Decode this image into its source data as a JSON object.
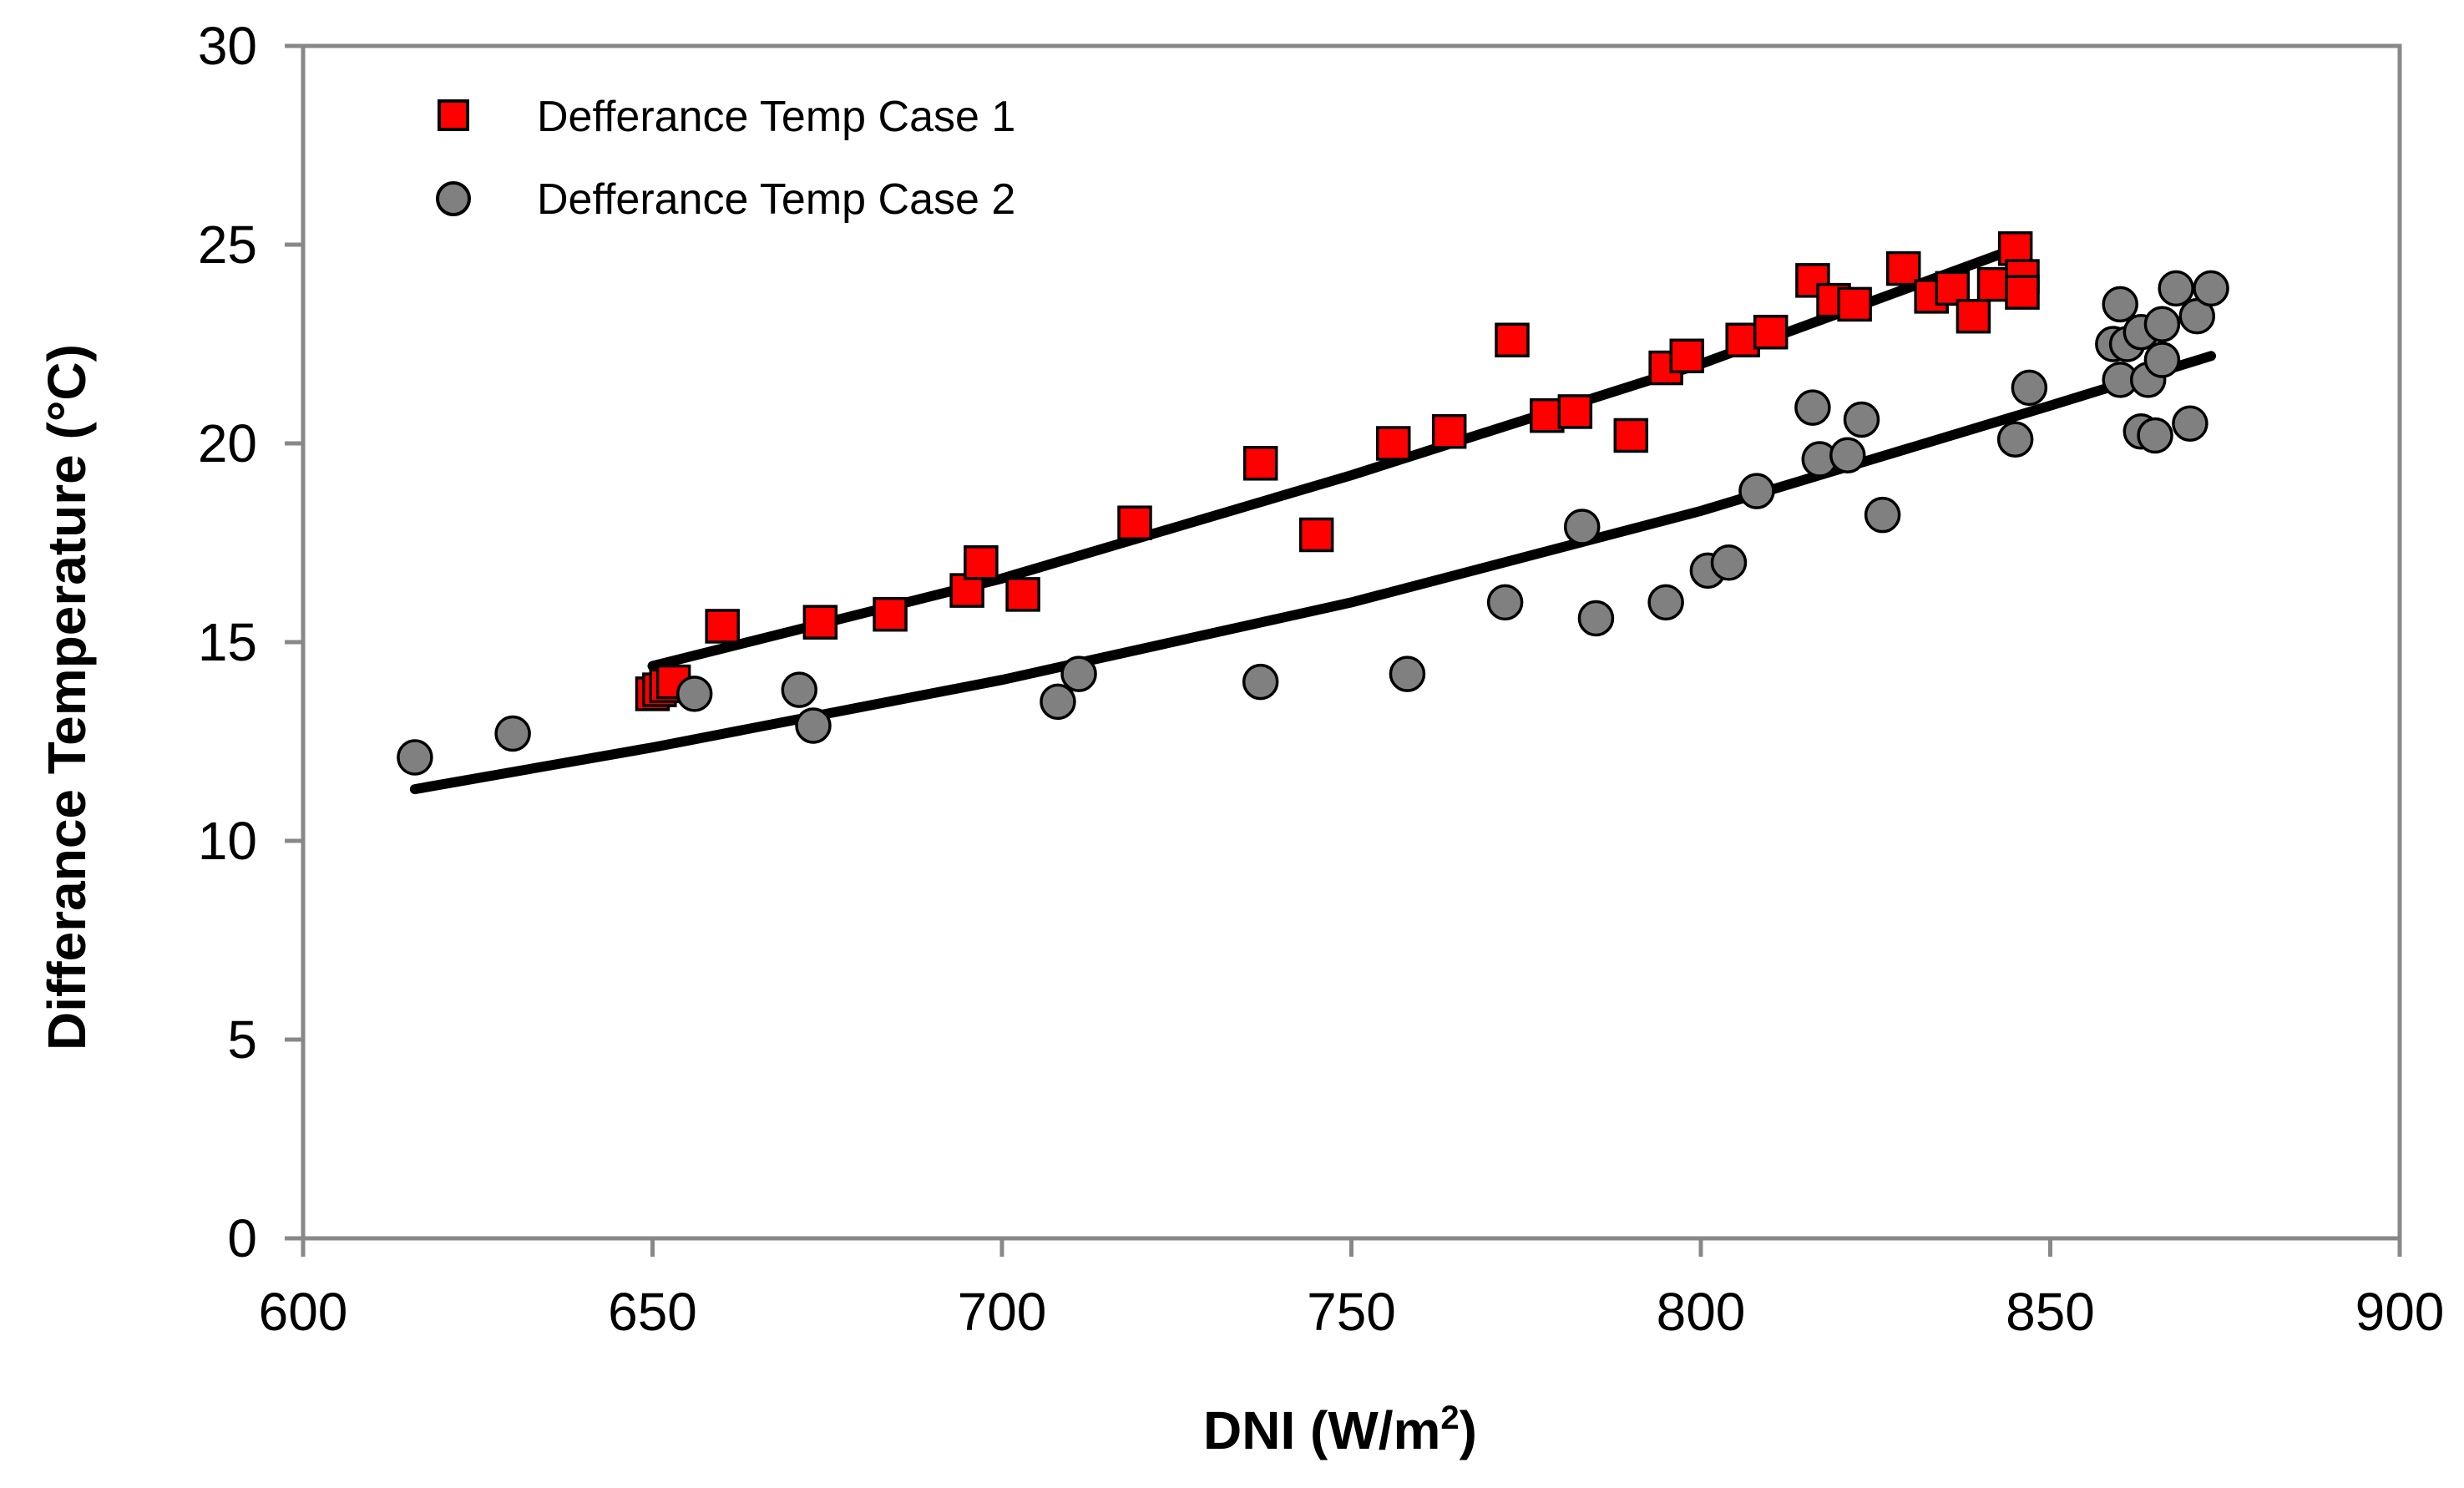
{
  "chart_data": {
    "type": "scatter",
    "xlabel_main": "DNI (W/m",
    "xlabel_sup": "2",
    "xlabel_end": ")",
    "ylabel": "Differance Temperature (°C)",
    "xlim": [
      600,
      900
    ],
    "ylim": [
      0,
      30
    ],
    "xticks": [
      600,
      650,
      700,
      750,
      800,
      850,
      900
    ],
    "yticks": [
      0,
      5,
      10,
      15,
      20,
      25,
      30
    ],
    "xtick_labels": [
      "600",
      "650",
      "700",
      "750",
      "800",
      "850",
      "900"
    ],
    "ytick_labels": [
      "0",
      "5",
      "10",
      "15",
      "20",
      "25",
      "30"
    ],
    "legend_position": "top-left",
    "grid": false,
    "series": [
      {
        "name": "Defferance Temp Case 1",
        "marker": "square",
        "color": "#ff0000",
        "edge_color": "#000000",
        "points": [
          [
            650,
            13.7
          ],
          [
            651,
            13.8
          ],
          [
            652,
            13.9
          ],
          [
            653,
            14.0
          ],
          [
            660,
            15.4
          ],
          [
            674,
            15.5
          ],
          [
            684,
            15.7
          ],
          [
            695,
            16.3
          ],
          [
            697,
            17.0
          ],
          [
            703,
            16.2
          ],
          [
            719,
            18.0
          ],
          [
            737,
            19.5
          ],
          [
            745,
            17.7
          ],
          [
            756,
            20.0
          ],
          [
            764,
            20.3
          ],
          [
            773,
            22.6
          ],
          [
            778,
            20.7
          ],
          [
            782,
            20.8
          ],
          [
            790,
            20.2
          ],
          [
            795,
            21.9
          ],
          [
            798,
            22.2
          ],
          [
            806,
            22.6
          ],
          [
            810,
            22.8
          ],
          [
            816,
            24.1
          ],
          [
            819,
            23.6
          ],
          [
            822,
            23.5
          ],
          [
            829,
            24.4
          ],
          [
            833,
            23.7
          ],
          [
            836,
            23.9
          ],
          [
            839,
            23.2
          ],
          [
            842,
            24.0
          ],
          [
            845,
            24.9
          ],
          [
            846,
            24.2
          ],
          [
            846,
            23.8
          ]
        ],
        "trend": {
          "x": [
            650,
            700,
            750,
            800,
            845
          ],
          "y": [
            14.4,
            16.6,
            19.2,
            22.0,
            24.9
          ]
        }
      },
      {
        "name": "Defferance Temp Case 2",
        "marker": "circle",
        "color": "#808080",
        "edge_color": "#000000",
        "points": [
          [
            616,
            12.1
          ],
          [
            630,
            12.7
          ],
          [
            656,
            13.7
          ],
          [
            671,
            13.8
          ],
          [
            673,
            12.9
          ],
          [
            708,
            13.5
          ],
          [
            711,
            14.2
          ],
          [
            737,
            14.0
          ],
          [
            758,
            14.2
          ],
          [
            772,
            16.0
          ],
          [
            783,
            17.9
          ],
          [
            785,
            15.6
          ],
          [
            795,
            16.0
          ],
          [
            801,
            16.8
          ],
          [
            804,
            17.0
          ],
          [
            808,
            18.8
          ],
          [
            816,
            20.9
          ],
          [
            817,
            19.6
          ],
          [
            821,
            19.7
          ],
          [
            823,
            20.6
          ],
          [
            826,
            18.2
          ],
          [
            845,
            20.1
          ],
          [
            847,
            21.4
          ],
          [
            859,
            22.5
          ],
          [
            860,
            23.5
          ],
          [
            860,
            21.6
          ],
          [
            861,
            22.5
          ],
          [
            863,
            22.8
          ],
          [
            863,
            20.3
          ],
          [
            864,
            21.6
          ],
          [
            865,
            20.2
          ],
          [
            866,
            22.1
          ],
          [
            866,
            23.0
          ],
          [
            868,
            23.9
          ],
          [
            870,
            20.5
          ],
          [
            871,
            23.2
          ],
          [
            873,
            23.9
          ]
        ],
        "trend": {
          "x": [
            616,
            650,
            700,
            750,
            800,
            850,
            873
          ],
          "y": [
            11.3,
            12.35,
            14.05,
            16.0,
            18.3,
            20.95,
            22.2
          ]
        }
      }
    ]
  }
}
